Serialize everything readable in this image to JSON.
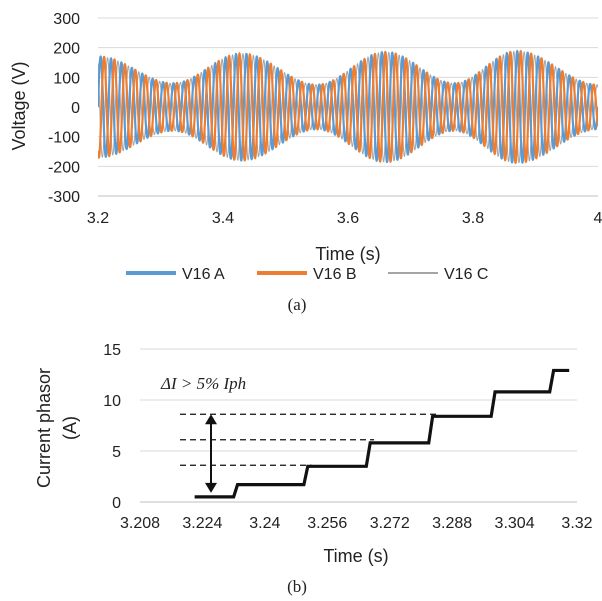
{
  "chart_data": [
    {
      "type": "line",
      "title": "",
      "xlabel": "Time (s)",
      "ylabel": "Voltage  (V)",
      "xlim": [
        3.2,
        4.0
      ],
      "ylim": [
        -300,
        300
      ],
      "x_ticks": [
        "3.2",
        "3.4",
        "3.6",
        "3.8",
        "4"
      ],
      "y_ticks": [
        "300",
        "200",
        "100",
        "0",
        "-100",
        "-200",
        "-300"
      ],
      "grid": "horizontal",
      "legend_position": "bottom",
      "envelope": {
        "t": [
          3.2,
          3.32,
          3.43,
          3.55,
          3.66,
          3.77,
          3.87,
          4.0
        ],
        "amplitude": [
          170,
          80,
          180,
          75,
          185,
          80,
          188,
          75
        ]
      },
      "series": [
        {
          "name": "V16 A",
          "color": "#5b9bd5",
          "phase_deg": 0
        },
        {
          "name": "V16 B",
          "color": "#ed7d31",
          "phase_deg": -120
        },
        {
          "name": "V16 C",
          "color": "#a5a5a5",
          "phase_deg": 120
        }
      ],
      "caption": "(a)"
    },
    {
      "type": "line",
      "title": "",
      "xlabel": "Time (s)",
      "ylabel": "Current phasor (A)",
      "ylabel_lines": [
        "Current phasor",
        "(A)"
      ],
      "xlim": [
        3.208,
        3.32
      ],
      "ylim": [
        0,
        15
      ],
      "x_ticks": [
        "3.208",
        "3.224",
        "3.24",
        "3.256",
        "3.272",
        "3.288",
        "3.304",
        "3.32"
      ],
      "y_ticks": [
        "15",
        "10",
        "5",
        "0"
      ],
      "grid": "horizontal",
      "series": [
        {
          "name": "",
          "color": "#111111",
          "x": [
            3.222,
            3.232,
            3.233,
            3.25,
            3.251,
            3.266,
            3.267,
            3.282,
            3.283,
            3.298,
            3.299,
            3.313,
            3.314,
            3.318
          ],
          "y": [
            0.5,
            0.5,
            1.7,
            1.7,
            3.5,
            3.5,
            5.8,
            5.8,
            8.4,
            8.4,
            10.8,
            10.8,
            12.9,
            12.9
          ]
        }
      ],
      "annotations": {
        "text": "ΔI > 5% Iph",
        "dashed_levels": [
          3.6,
          6.1,
          8.6
        ],
        "arrow_from": 0.5,
        "arrow_to": 8.6,
        "arrow_x": 3.232
      },
      "caption": "(b)"
    }
  ]
}
